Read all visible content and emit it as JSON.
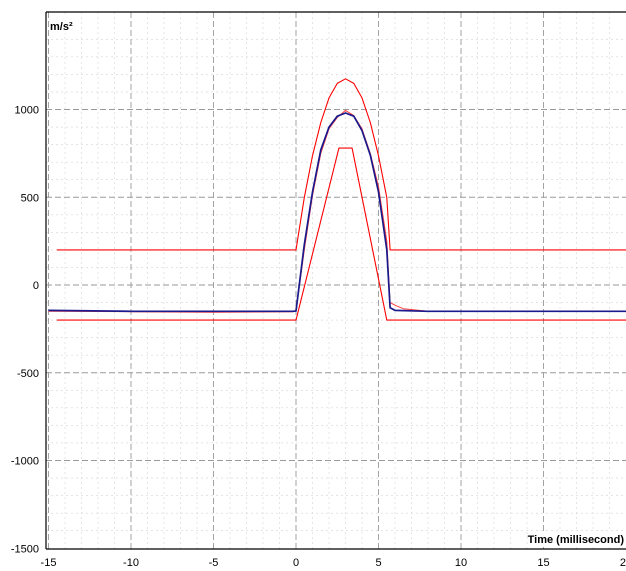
{
  "chart_data": {
    "type": "line",
    "title": "",
    "ylabel": "m/s²",
    "xlabel": "Time (millisecond)",
    "xlim": [
      -15,
      20
    ],
    "ylim": [
      -1500,
      1500
    ],
    "grid": true,
    "x_ticks": [
      -15,
      -10,
      -5,
      0,
      5,
      10,
      15,
      20
    ],
    "y_ticks": [
      1000,
      500,
      0,
      -500,
      -1000,
      -1500
    ],
    "colors": {
      "tolerance": "#ff0000",
      "measured": "#1a1a8c",
      "reference": "#ff3b3b",
      "frame": "#000000",
      "grid": "#9a9a9a",
      "subgrid": "#d4d4d4"
    },
    "series": [
      {
        "role": "upper-tolerance",
        "x": [
          -14.5,
          0,
          0.5,
          1,
          1.5,
          2,
          2.5,
          3,
          3.5,
          4,
          4.5,
          5,
          5.5,
          5.7,
          20
        ],
        "y": [
          200,
          200,
          498,
          737,
          926,
          1066,
          1149,
          1175,
          1149,
          1066,
          926,
          737,
          498,
          200,
          200
        ]
      },
      {
        "role": "lower-tolerance",
        "x": [
          -14.5,
          0,
          2.6,
          3.4,
          5.5,
          20
        ],
        "y": [
          -200,
          -200,
          780,
          780,
          -200,
          -200
        ]
      },
      {
        "role": "measured",
        "x": [
          -15,
          -10,
          -5,
          -0.2,
          0,
          0.5,
          1,
          1.5,
          2,
          2.5,
          3,
          3.5,
          4,
          4.5,
          5,
          5.5,
          5.7,
          6,
          8,
          10,
          15,
          20
        ],
        "y": [
          -145,
          -150,
          -150,
          -150,
          -148,
          230,
          530,
          770,
          900,
          962,
          980,
          962,
          880,
          740,
          530,
          200,
          -130,
          -145,
          -150,
          -150,
          -150,
          -150
        ]
      },
      {
        "role": "reference",
        "x": [
          -15,
          -10,
          -5,
          -0.2,
          0,
          0.5,
          1,
          1.5,
          2,
          2.5,
          3,
          3.5,
          4,
          4.5,
          5,
          5.5,
          5.7,
          6,
          6.5,
          8,
          10,
          15,
          20
        ],
        "y": [
          -150,
          -152,
          -155,
          -152,
          -150,
          200,
          510,
          750,
          890,
          955,
          995,
          965,
          890,
          750,
          560,
          250,
          -100,
          -115,
          -135,
          -150,
          -150,
          -150,
          -148
        ]
      }
    ]
  }
}
